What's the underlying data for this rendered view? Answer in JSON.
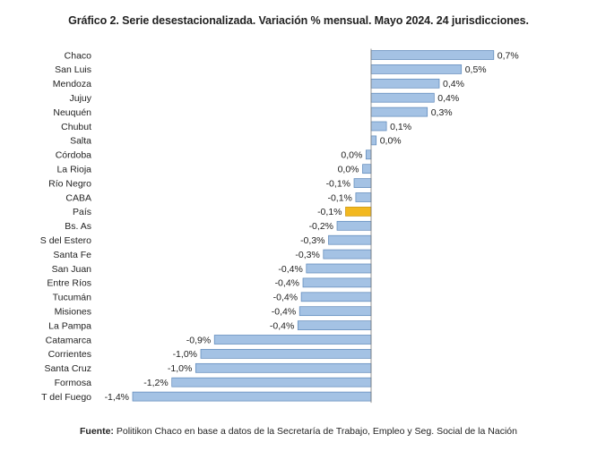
{
  "chart_data": {
    "type": "bar",
    "orientation": "horizontal",
    "title": "Gráfico 2. Serie desestacionalizada. Variación % mensual. Mayo 2024. 24 jurisdicciones.",
    "categories": [
      "Chaco",
      "San Luis",
      "Mendoza",
      "Jujuy",
      "Neuquén",
      "Chubut",
      "Salta",
      "Córdoba",
      "La Rioja",
      "Río Negro",
      "CABA",
      "País",
      "Bs. As",
      "S del Estero",
      "Santa Fe",
      "San Juan",
      "Entre Ríos",
      "Tucumán",
      "Misiones",
      "La Pampa",
      "Catamarca",
      "Corrientes",
      "Santa Cruz",
      "Formosa",
      "T del Fuego"
    ],
    "values": [
      0.72,
      0.53,
      0.4,
      0.37,
      0.33,
      0.09,
      0.03,
      -0.03,
      -0.05,
      -0.1,
      -0.09,
      -0.15,
      -0.2,
      -0.25,
      -0.28,
      -0.38,
      -0.4,
      -0.41,
      -0.42,
      -0.43,
      -0.92,
      -1.0,
      -1.03,
      -1.17,
      -1.4
    ],
    "data_labels": [
      "0,7%",
      "0,5%",
      "0,4%",
      "0,4%",
      "0,3%",
      "0,1%",
      "0,0%",
      "0,0%",
      "0,0%",
      "-0,1%",
      "-0,1%",
      "-0,1%",
      "-0,2%",
      "-0,3%",
      "-0,3%",
      "-0,4%",
      "-0,4%",
      "-0,4%",
      "-0,4%",
      "-0,4%",
      "-0,9%",
      "-1,0%",
      "-1,0%",
      "-1,2%",
      "-1,4%"
    ],
    "highlight_category": "País",
    "colors": {
      "bar": "#a4c2e4",
      "bar_stroke": "#5a86b8",
      "highlight": "#f2b81f",
      "highlight_stroke": "#c8920a",
      "axis": "#7a7a7a"
    },
    "grid": false,
    "legend": "none"
  },
  "footer": {
    "lead": "Fuente:",
    "text": " Politikon Chaco en base a datos de la Secretaría de Trabajo, Empleo y Seg. Social de la Nación"
  }
}
